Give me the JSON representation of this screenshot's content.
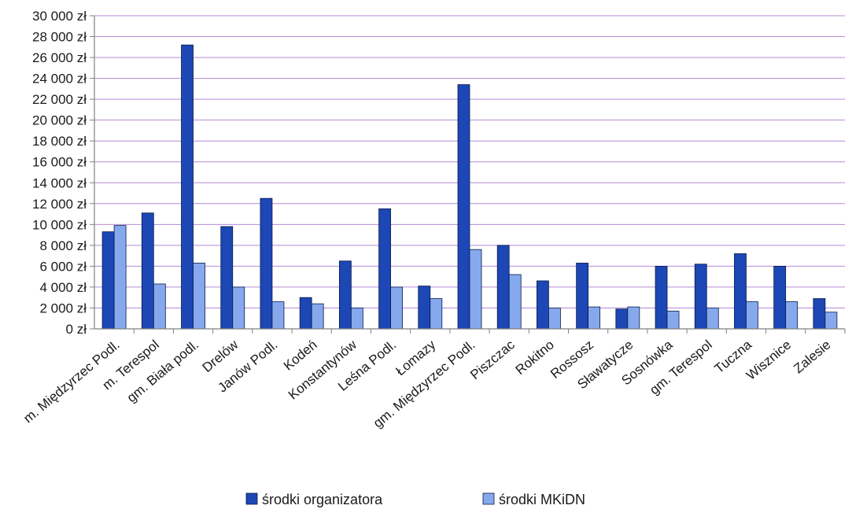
{
  "chart_data": {
    "type": "bar",
    "title": "",
    "xlabel": "",
    "ylabel": "",
    "ylim": [
      0,
      30000
    ],
    "ytick_step": 2000,
    "ytick_labels": [
      "0 zł",
      "2 000 zł",
      "4 000 zł",
      "6 000 zł",
      "8 000 zł",
      "10 000 zł",
      "12 000 zł",
      "14 000 zł",
      "16 000 zł",
      "18 000 zł",
      "20 000 zł",
      "22 000 zł",
      "24 000 zł",
      "26 000 zł",
      "28 000 zł",
      "30 000 zł"
    ],
    "grid": true,
    "legend_position": "bottom",
    "categories": [
      "m. Międzyrzec Podl.",
      "m. Terespol",
      "gm. Biała podl.",
      "Drelów",
      "Janów Podl.",
      "Kodeń",
      "Konstantynów",
      "Leśna Podl.",
      "Łomazy",
      "gm. Międzyrzec Podl.",
      "Piszczac",
      "Rokitno",
      "Rossosz",
      "Sławatycze",
      "Sosnówka",
      "gm. Terespol",
      "Tuczna",
      "Wisznice",
      "Zalesie"
    ],
    "series": [
      {
        "name": "środki organizatora",
        "color": "#1c47b5",
        "values": [
          9300,
          11100,
          27200,
          9800,
          12500,
          3000,
          6500,
          11500,
          4100,
          23400,
          8000,
          4600,
          6300,
          1900,
          6000,
          6200,
          7200,
          6000,
          2900
        ]
      },
      {
        "name": "środki MKiDN",
        "color": "#86a9ee",
        "values": [
          9900,
          4300,
          6300,
          4000,
          2600,
          2400,
          2000,
          4000,
          2900,
          7600,
          5200,
          2000,
          2100,
          2100,
          1700,
          2000,
          2600,
          2600,
          1600
        ]
      }
    ]
  }
}
